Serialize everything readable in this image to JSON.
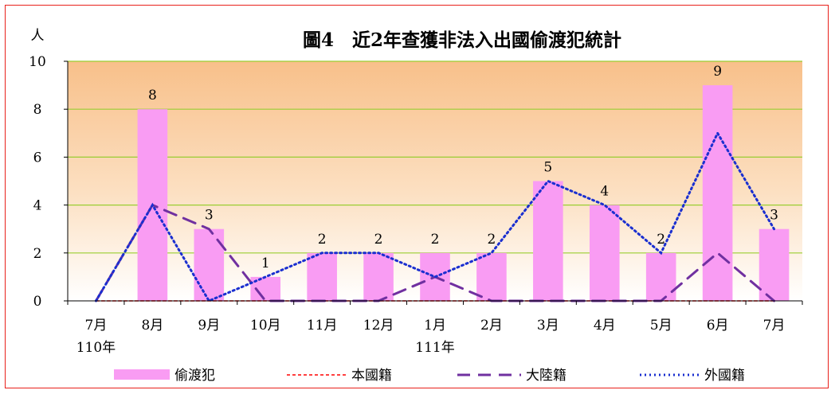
{
  "chart_data": {
    "type": "bar",
    "title": "圖4　近2年查獲非法入出國偷渡犯統計",
    "ylabel": "人",
    "ylim": [
      0,
      10
    ],
    "yticks": [
      0,
      2,
      4,
      6,
      8,
      10
    ],
    "grid": true,
    "legend_position": "bottom",
    "categories": [
      "7月",
      "8月",
      "9月",
      "10月",
      "11月",
      "12月",
      "1月",
      "2月",
      "3月",
      "4月",
      "5月",
      "6月",
      "7月"
    ],
    "year_labels": [
      {
        "index": 0,
        "text": "110年"
      },
      {
        "index": 6,
        "text": "111年"
      }
    ],
    "series": [
      {
        "name": "偷渡犯",
        "kind": "bar",
        "color": "#f99cf3",
        "values": [
          0,
          8,
          3,
          1,
          2,
          2,
          2,
          2,
          5,
          4,
          2,
          9,
          3
        ]
      },
      {
        "name": "本國籍",
        "kind": "line",
        "style": "dashed",
        "color": "#ff0000",
        "values": [
          0,
          0,
          0,
          0,
          0,
          0,
          0,
          0,
          0,
          0,
          0,
          0,
          0
        ]
      },
      {
        "name": "大陸籍",
        "kind": "line",
        "style": "longdash",
        "color": "#7030a0",
        "values": [
          0,
          4,
          3,
          0,
          0,
          0,
          1,
          0,
          0,
          0,
          0,
          2,
          0
        ]
      },
      {
        "name": "外國籍",
        "kind": "line",
        "style": "dotted",
        "color": "#1a2fd0",
        "values": [
          0,
          4,
          0,
          1,
          2,
          2,
          1,
          2,
          5,
          4,
          2,
          7,
          3
        ]
      }
    ]
  }
}
